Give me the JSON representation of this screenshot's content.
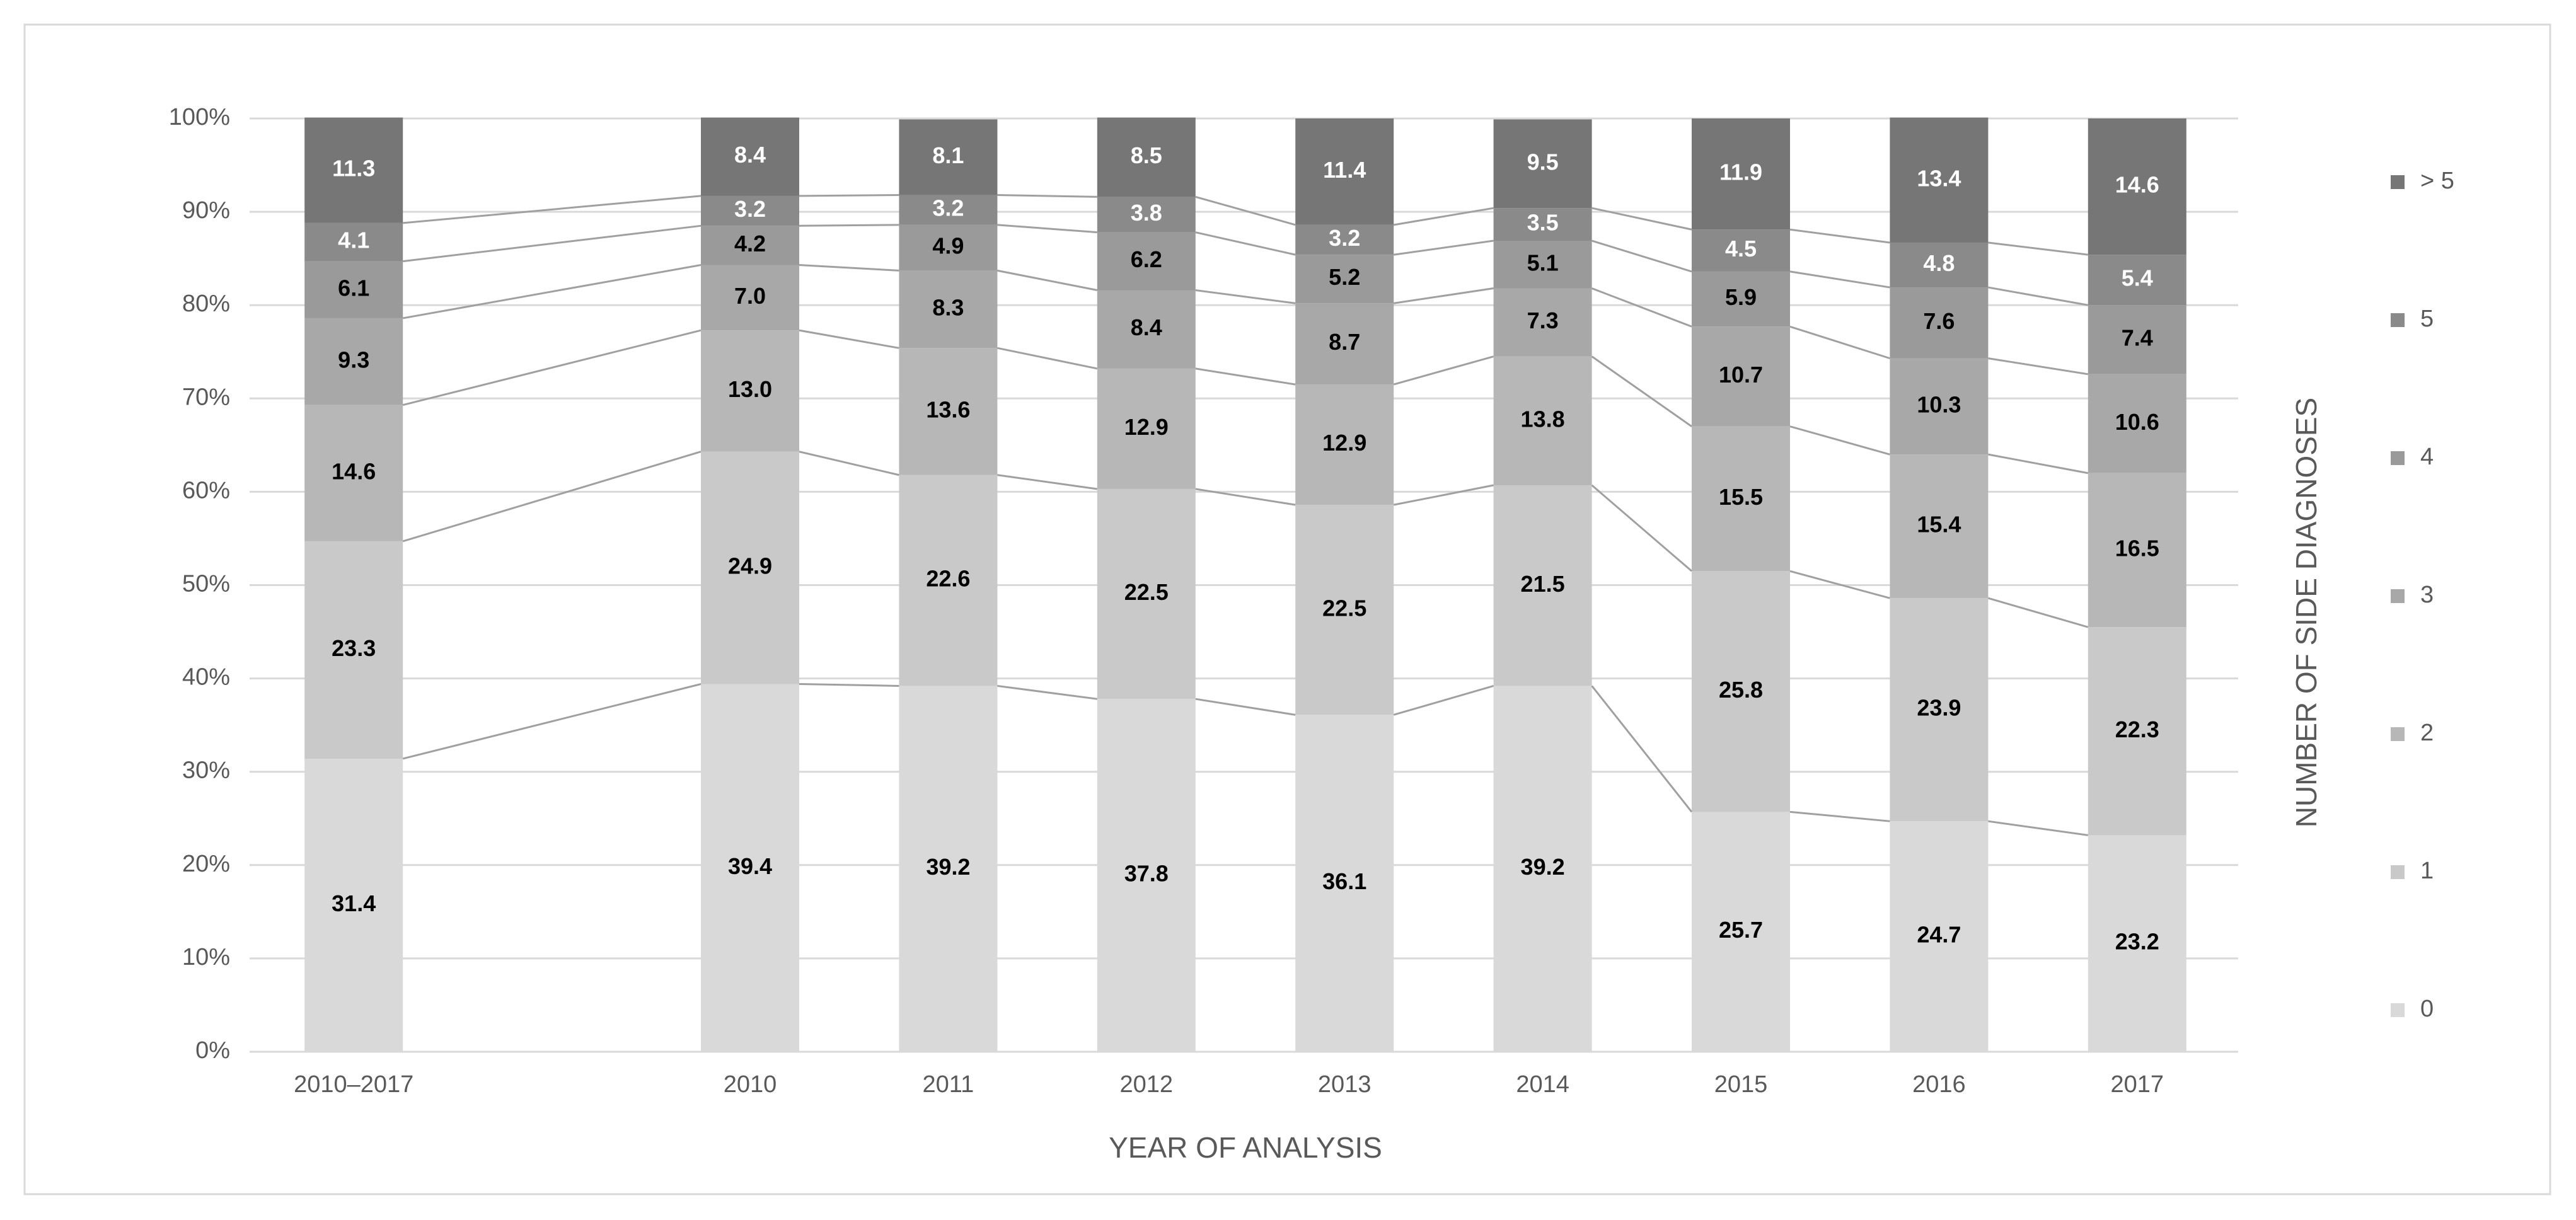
{
  "chart_data": {
    "type": "bar",
    "stacked": true,
    "categories": [
      "2010–2017",
      null,
      "2010",
      "2011",
      "2012",
      "2013",
      "2014",
      "2015",
      "2016",
      "2017"
    ],
    "series": [
      {
        "name": "0",
        "color": "#d9d9d9",
        "values": [
          31.4,
          null,
          39.4,
          39.2,
          37.8,
          36.1,
          39.2,
          25.7,
          24.7,
          23.2
        ],
        "value_labels": [
          "31.4",
          null,
          "39.4",
          "39.2",
          "37.8",
          "36.1",
          "39.2",
          "25.7",
          "24.7",
          "23.2"
        ]
      },
      {
        "name": "1",
        "color": "#c9c9c9",
        "values": [
          23.3,
          null,
          24.9,
          22.6,
          22.5,
          22.5,
          21.5,
          25.8,
          23.9,
          22.3
        ],
        "value_labels": [
          "23.3",
          null,
          "24.9",
          "22.6",
          "22.5",
          "22.5",
          "21.5",
          "25.8",
          "23.9",
          "22.3"
        ]
      },
      {
        "name": "2",
        "color": "#b7b7b7",
        "values": [
          14.6,
          null,
          13.0,
          13.6,
          12.9,
          12.9,
          13.8,
          15.5,
          15.4,
          16.5
        ],
        "value_labels": [
          "14.6",
          null,
          "13.0",
          "13.6",
          "12.9",
          "12.9",
          "13.8",
          "15.5",
          "15.4",
          "16.5"
        ]
      },
      {
        "name": "3",
        "color": "#a8a8a8",
        "values": [
          9.3,
          null,
          7.0,
          8.3,
          8.4,
          8.7,
          7.3,
          10.7,
          10.3,
          10.6
        ],
        "value_labels": [
          "9.3",
          null,
          "7.0",
          "8.3",
          "8.4",
          "8.7",
          "7.3",
          "10.7",
          "10.3",
          "10.6"
        ]
      },
      {
        "name": "4",
        "color": "#9a9a9a",
        "values": [
          6.1,
          null,
          4.2,
          4.9,
          6.2,
          5.2,
          5.1,
          5.9,
          7.6,
          7.4
        ],
        "value_labels": [
          "6.1",
          null,
          "4.2",
          "4.9",
          "6.2",
          "5.2",
          "5.1",
          "5.9",
          "7.6",
          "7.4"
        ]
      },
      {
        "name": "5",
        "color": "#8a8a8a",
        "values": [
          4.1,
          null,
          3.2,
          3.2,
          3.8,
          3.2,
          3.5,
          4.5,
          4.8,
          5.4
        ],
        "value_labels": [
          "4.1",
          null,
          "3.2",
          "3.2",
          "3.8",
          "3.2",
          "3.5",
          "4.5",
          "4.8",
          "5.4"
        ]
      },
      {
        "name": "> 5",
        "color": "#767676",
        "values": [
          11.3,
          null,
          8.4,
          8.1,
          8.5,
          11.4,
          9.5,
          11.9,
          13.4,
          14.6
        ],
        "value_labels": [
          "11.3",
          null,
          "8.4",
          "8.1",
          "8.5",
          "11.4",
          "9.5",
          "11.9",
          "13.4",
          "14.6"
        ]
      }
    ],
    "ylim": [
      0,
      100
    ],
    "yticks": [
      {
        "value": 0,
        "label": "0%"
      },
      {
        "value": 10,
        "label": "10%"
      },
      {
        "value": 20,
        "label": "20%"
      },
      {
        "value": 30,
        "label": "30%"
      },
      {
        "value": 40,
        "label": "40%"
      },
      {
        "value": 50,
        "label": "50%"
      },
      {
        "value": 60,
        "label": "60%"
      },
      {
        "value": 70,
        "label": "70%"
      },
      {
        "value": 80,
        "label": "80%"
      },
      {
        "value": 90,
        "label": "90%"
      },
      {
        "value": 100,
        "label": "100%"
      }
    ],
    "grid": true,
    "xlabel": "YEAR OF ANALYSIS",
    "legend_title": "NUMBER OF SIDE DIAGNOSES",
    "legend": "right"
  }
}
